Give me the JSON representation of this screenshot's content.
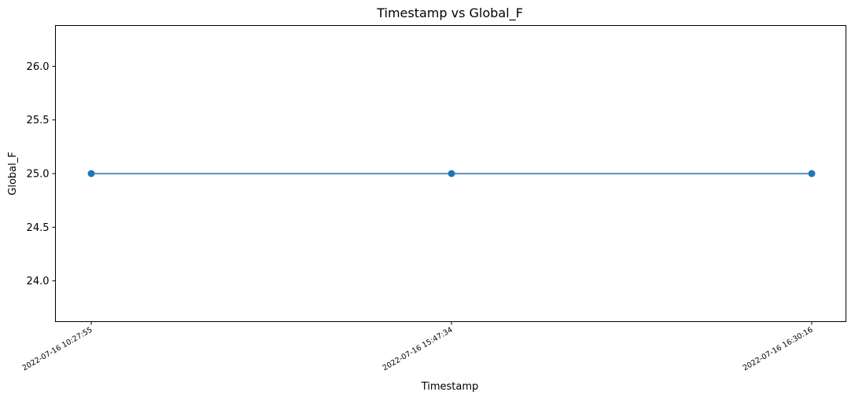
{
  "chart_data": {
    "type": "line",
    "title": "Timestamp vs Global_F",
    "xlabel": "Timestamp",
    "ylabel": "Global_F",
    "categories": [
      "2022-07-16 10:27:55",
      "2022-07-16 15:47:34",
      "2022-07-16 16:30:16"
    ],
    "series": [
      {
        "values": [
          25.0,
          25.0,
          25.0
        ],
        "color": "#1f77b4",
        "marker": "circle"
      }
    ],
    "ylim": [
      23.62,
      26.38
    ],
    "yticks": [
      24.0,
      24.5,
      25.0,
      25.5,
      26.0
    ],
    "ytick_labels": [
      "24.0",
      "24.5",
      "25.0",
      "25.5",
      "26.0"
    ],
    "grid": false,
    "legend": "none"
  }
}
